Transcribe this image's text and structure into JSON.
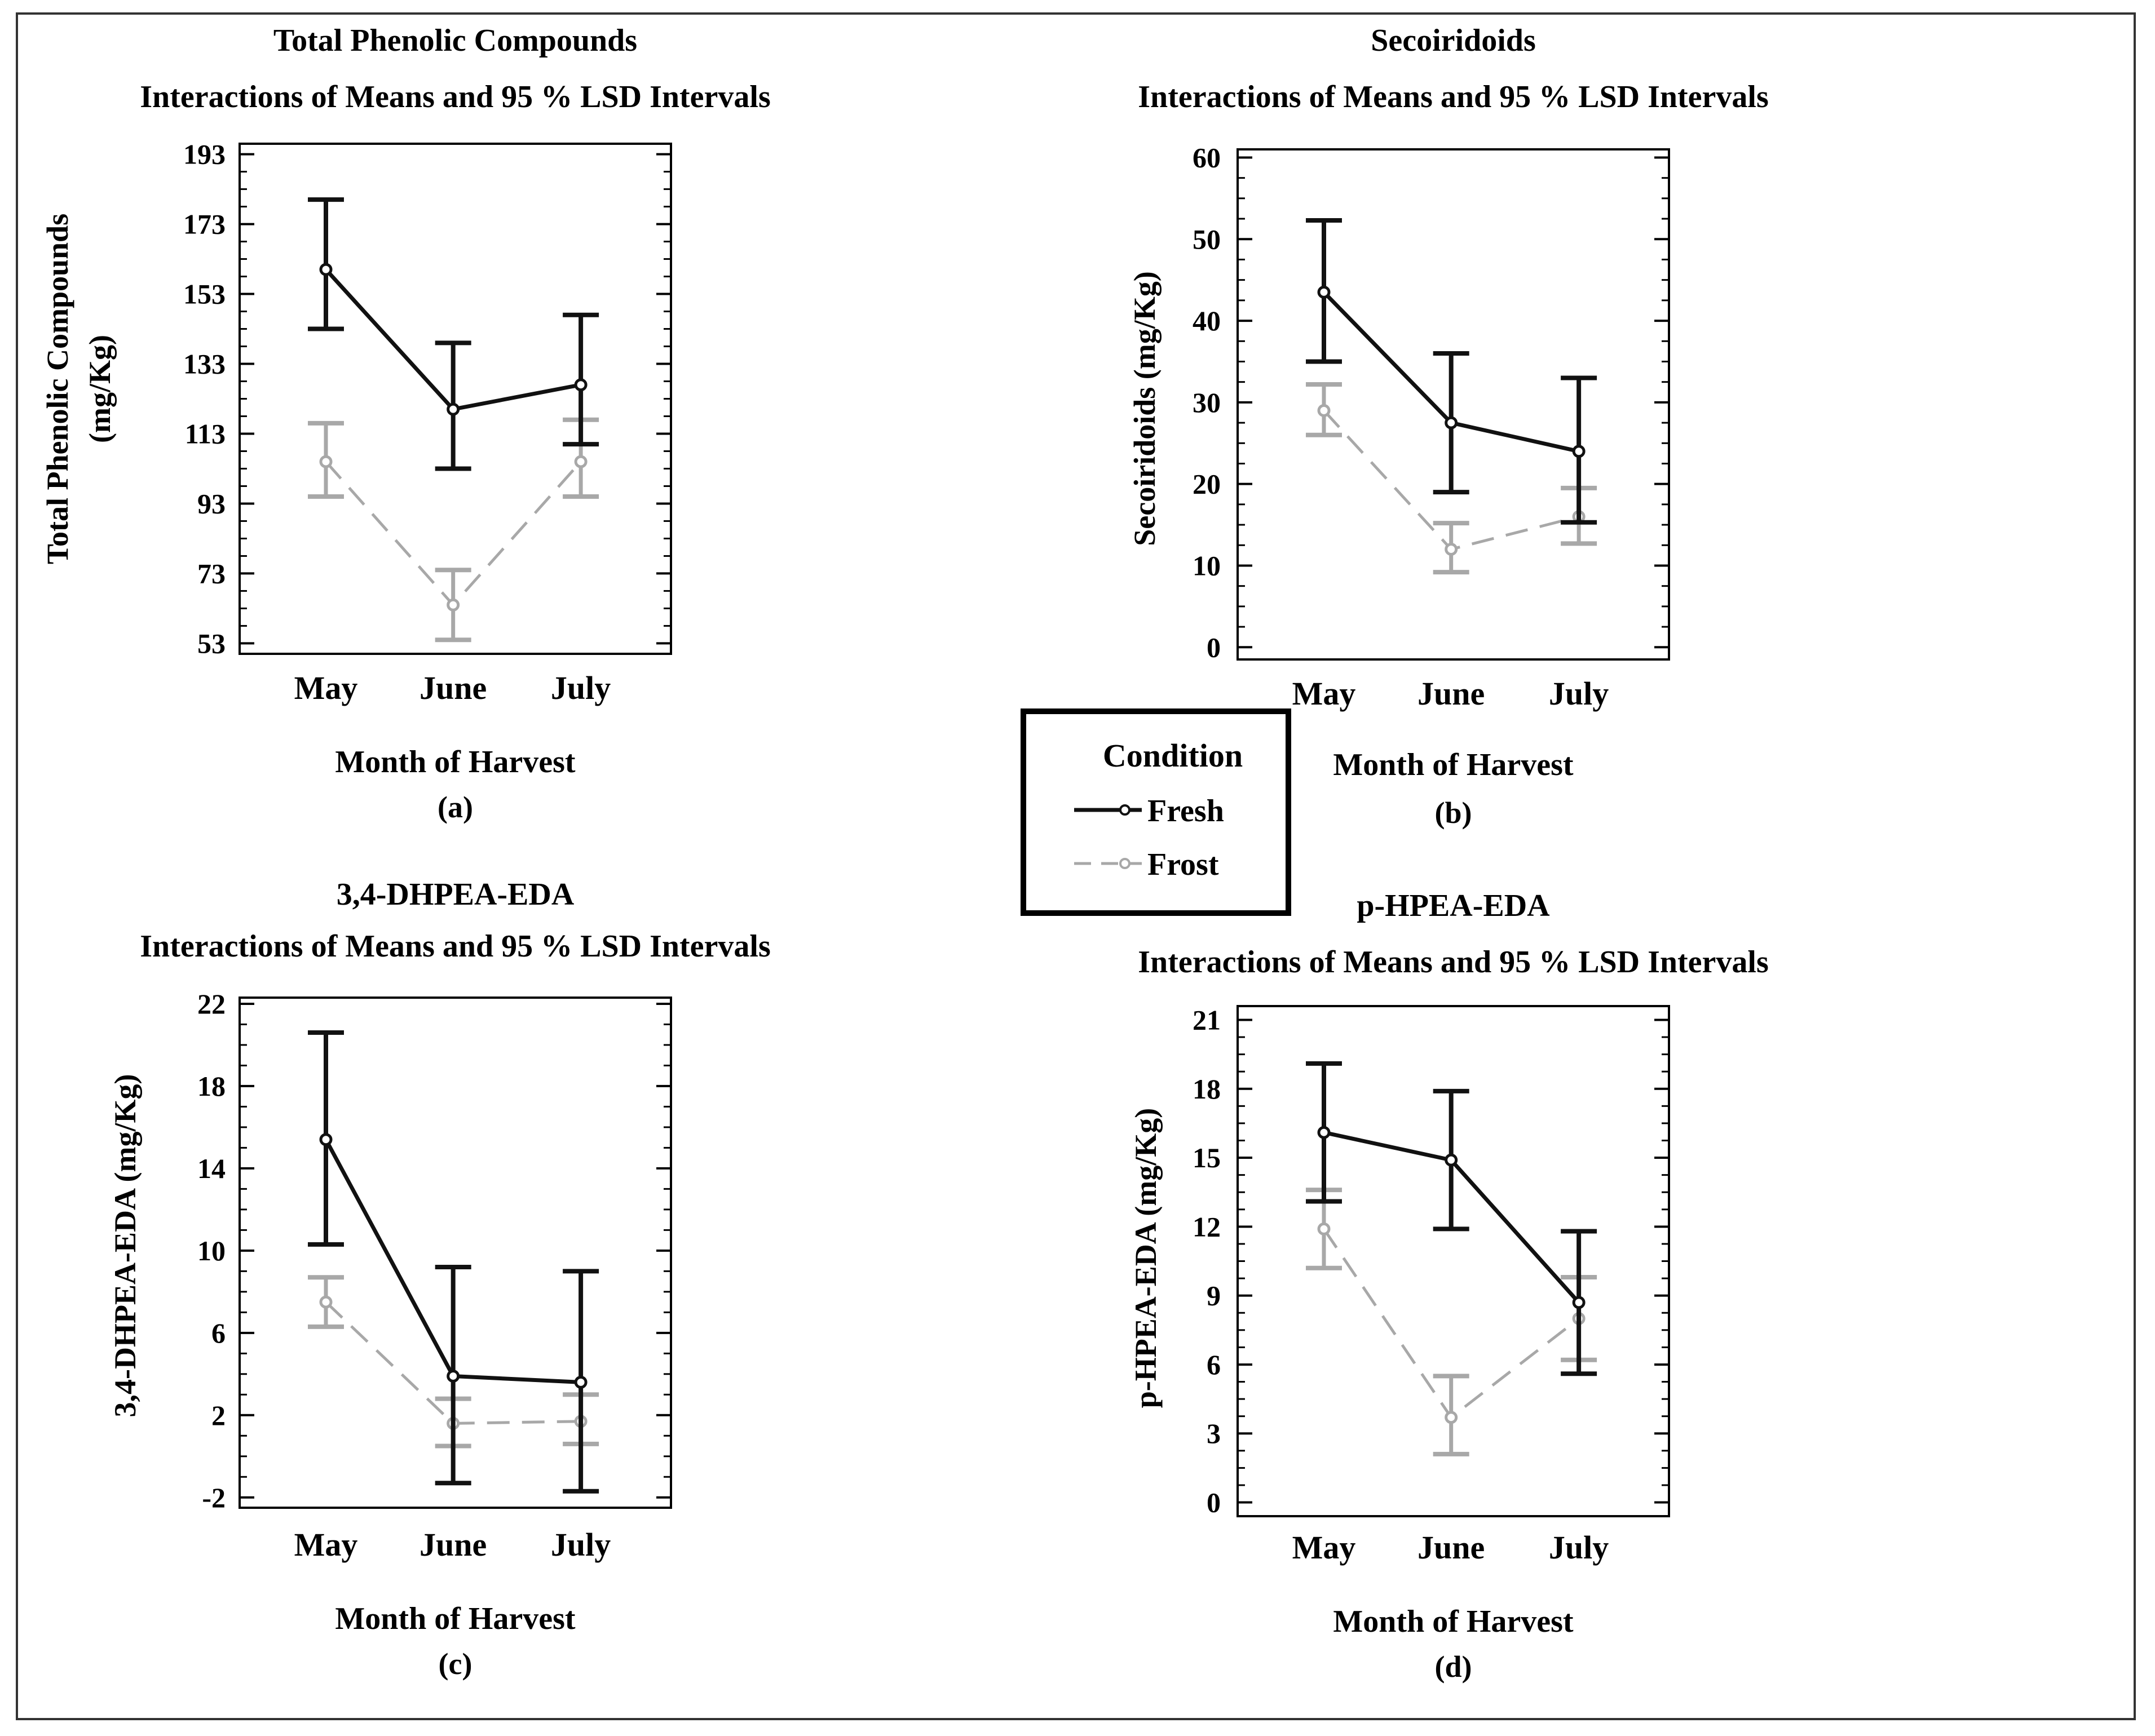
{
  "legend": {
    "title": "Condition",
    "items": [
      {
        "label": "Fresh",
        "color": "#111111",
        "dash": "solid"
      },
      {
        "label": "Frost",
        "color": "#a8a8a8",
        "dash": "dashed"
      }
    ]
  },
  "chart_data": [
    {
      "type": "line",
      "panel": "(a)",
      "title": "Total Phenolic Compounds",
      "subtitle": "Interactions of Means and 95 %  LSD Intervals",
      "xlabel": "Month of Harvest",
      "ylabel": [
        "Total Phenolic Compounds",
        "(mg/Kg)"
      ],
      "categories": [
        "May",
        "June",
        "July"
      ],
      "yticks": [
        "193",
        "173",
        "153",
        "133",
        "113",
        "93",
        "73",
        "53"
      ],
      "ylim": [
        50,
        196
      ],
      "series": [
        {
          "name": "Fresh",
          "values": [
            160,
            120,
            127
          ],
          "lower": [
            143,
            103,
            110
          ],
          "upper": [
            180,
            139,
            147
          ]
        },
        {
          "name": "Frost",
          "values": [
            105,
            64,
            105
          ],
          "lower": [
            95,
            54,
            95
          ],
          "upper": [
            116,
            74,
            117
          ]
        }
      ]
    },
    {
      "type": "line",
      "panel": "(b)",
      "title": "Secoiridoids",
      "subtitle": "Interactions of Means and 95 %  LSD Intervals",
      "xlabel": "Month of Harvest",
      "ylabel": [
        "Secoiridoids (mg/Kg)"
      ],
      "categories": [
        "May",
        "June",
        "July"
      ],
      "yticks": [
        "60",
        "50",
        "40",
        "30",
        "20",
        "10",
        "0"
      ],
      "ylim": [
        -1.5,
        61
      ],
      "series": [
        {
          "name": "Fresh",
          "values": [
            43.5,
            27.5,
            24
          ],
          "lower": [
            35,
            19,
            15.3
          ],
          "upper": [
            52.3,
            36,
            33
          ]
        },
        {
          "name": "Frost",
          "values": [
            29,
            12,
            16
          ],
          "lower": [
            26,
            9.2,
            12.7
          ],
          "upper": [
            32.2,
            15.2,
            19.5
          ]
        }
      ]
    },
    {
      "type": "line",
      "panel": "(c)",
      "title": "3,4-DHPEA-EDA",
      "subtitle": "Interactions of Means and 95 %  LSD Intervals",
      "xlabel": "Month of Harvest",
      "ylabel": [
        "3,4-DHPEA-EDA (mg/Kg)"
      ],
      "categories": [
        "May",
        "June",
        "July"
      ],
      "yticks": [
        "22",
        "18",
        "14",
        "10",
        "6",
        "2",
        "-2"
      ],
      "ylim": [
        -2.5,
        22.3
      ],
      "series": [
        {
          "name": "Fresh",
          "values": [
            15.4,
            3.9,
            3.6
          ],
          "lower": [
            10.3,
            -1.3,
            -1.7
          ],
          "upper": [
            20.6,
            9.2,
            9
          ]
        },
        {
          "name": "Frost",
          "values": [
            7.5,
            1.6,
            1.7
          ],
          "lower": [
            6.3,
            0.5,
            0.6
          ],
          "upper": [
            8.7,
            2.8,
            3
          ]
        }
      ]
    },
    {
      "type": "line",
      "panel": "(d)",
      "title": "p-HPEA-EDA",
      "subtitle": "Interactions of Means and 95 %  LSD Intervals",
      "xlabel": "Month of Harvest",
      "ylabel": [
        "p-HPEA-EDA (mg/Kg)"
      ],
      "categories": [
        "May",
        "June",
        "July"
      ],
      "yticks": [
        "21",
        "18",
        "15",
        "12",
        "9",
        "6",
        "3",
        "0"
      ],
      "ylim": [
        -0.6,
        21.6
      ],
      "series": [
        {
          "name": "Fresh",
          "values": [
            16.1,
            14.9,
            8.7
          ],
          "lower": [
            13.1,
            11.9,
            5.6
          ],
          "upper": [
            19.1,
            17.9,
            11.8
          ]
        },
        {
          "name": "Frost",
          "values": [
            11.9,
            3.7,
            8
          ],
          "lower": [
            10.2,
            2.1,
            6.2
          ],
          "upper": [
            13.6,
            5.5,
            9.8
          ]
        }
      ]
    }
  ]
}
